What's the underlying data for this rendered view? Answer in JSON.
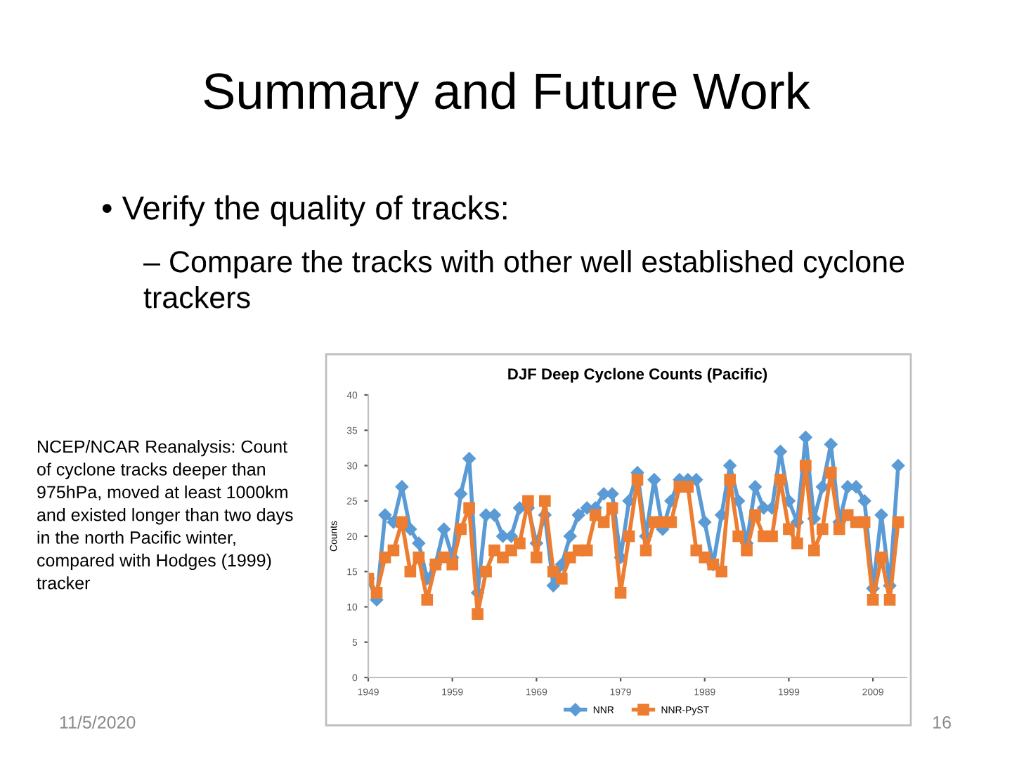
{
  "chart_data": {
    "type": "line",
    "title": "DJF Deep Cyclone Counts (Pacific)",
    "ylabel": "Counts",
    "annotations": [
      "Summary and Future Work",
      "• Verify the quality of tracks:",
      "– Compare the tracks with other well established cyclone trackers",
      "NCEP/NCAR Reanalysis: Count of cyclone tracks deeper than 975hPa, moved at least 1000km and existed longer than two days in the north Pacific winter, compared with Hodges (1999) tracker",
      "11/5/2020",
      "16"
    ],
    "x": [
      1949,
      1950,
      1951,
      1952,
      1953,
      1954,
      1955,
      1956,
      1957,
      1958,
      1959,
      1960,
      1961,
      1962,
      1963,
      1964,
      1965,
      1966,
      1967,
      1968,
      1969,
      1970,
      1971,
      1972,
      1973,
      1974,
      1975,
      1976,
      1977,
      1978,
      1979,
      1980,
      1981,
      1982,
      1983,
      1984,
      1985,
      1986,
      1987,
      1988,
      1989,
      1990,
      1991,
      1992,
      1993,
      1994,
      1995,
      1996,
      1997,
      1998,
      1999,
      2000,
      2001,
      2002,
      2003,
      2004,
      2005,
      2006,
      2007,
      2008,
      2009,
      2010,
      2011,
      2012
    ],
    "series": [
      {
        "name": "NNR",
        "color": "#5b9bd5",
        "marker": "diamond",
        "values": [
          14,
          11,
          23,
          22,
          27,
          21,
          19,
          14,
          16,
          21,
          17,
          26,
          31,
          12,
          23,
          23,
          20,
          20,
          24,
          24,
          19,
          23,
          13,
          16,
          20,
          23,
          24,
          24,
          26,
          26,
          17,
          25,
          29,
          20,
          28,
          21,
          25,
          28,
          28,
          28,
          22,
          16,
          23,
          30,
          25,
          19,
          27,
          24,
          24,
          32,
          25,
          22,
          34,
          22.5,
          27,
          33,
          22,
          27,
          27,
          25,
          12.6,
          23,
          13,
          30
        ]
      },
      {
        "name": "NNR-PyST",
        "color": "#ed7d31",
        "marker": "square",
        "values": [
          14,
          12,
          17,
          18,
          22,
          15,
          17,
          11,
          16,
          17,
          16,
          21,
          24,
          9,
          15,
          18,
          17,
          18,
          19,
          25,
          17,
          25,
          15,
          14,
          17,
          18,
          18,
          23,
          22,
          24,
          12,
          20,
          28,
          18,
          22,
          22,
          22,
          27,
          27,
          18,
          17,
          16,
          15,
          28,
          20,
          18,
          23,
          20,
          20,
          28,
          21,
          19,
          30,
          18,
          21,
          29,
          21,
          23,
          22,
          22,
          11,
          17,
          11,
          22
        ]
      }
    ],
    "xlim": [
      1949,
      2013
    ],
    "xticks": [
      1949,
      1959,
      1969,
      1979,
      1989,
      1999,
      2009
    ],
    "ylim": [
      0,
      40
    ],
    "yticks": [
      0,
      5,
      10,
      15,
      20,
      25,
      30,
      35,
      40
    ],
    "grid": false,
    "legend": "bottom"
  }
}
